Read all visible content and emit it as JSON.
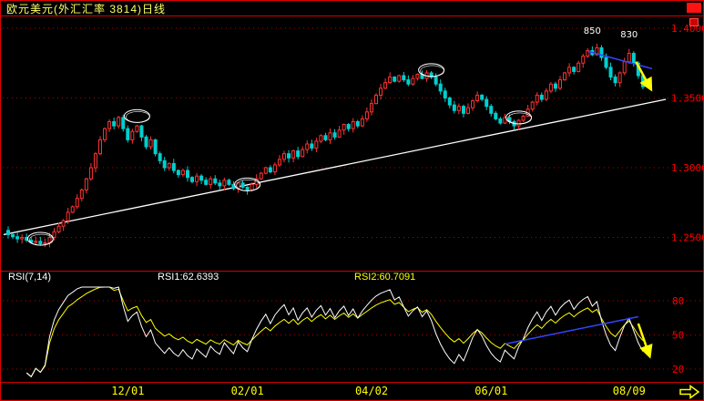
{
  "window": {
    "title": "欧元美元(外汇汇率 3814)日线"
  },
  "rsi_header": {
    "name": "RSI(7,14)",
    "rsi1": "RSI1:62.6393",
    "rsi2": "RSI2:60.7091"
  },
  "colors": {
    "background": "#000000",
    "frame": "#d00000",
    "grid": "#b00000",
    "axis_text": "#ff0000",
    "date_text": "#ffff00",
    "up_candle": "#ff3232",
    "down_candle": "#00cfcf",
    "trend_support": "#ffffff",
    "trend_resistance": "#3344ff",
    "arrow": "#ffff00",
    "rsi1_line": "#ffffff",
    "rsi2_line": "#ffff00",
    "annotation_text": "#ffffff"
  },
  "icons": {
    "corner_box": "red-square-icon",
    "marker_box": "small-red-square-icon",
    "next_arrow": "yellow-right-arrow-icon"
  },
  "chart_data": [
    {
      "type": "candlestick",
      "symbol": "欧元美元",
      "market_code": "外汇汇率 3814",
      "timeframe": "日线",
      "ylim": [
        1.227,
        1.408
      ],
      "y_ticks": [
        {
          "price": 1.4,
          "label": "1.4000"
        },
        {
          "price": 1.35,
          "label": "1.3500"
        },
        {
          "price": 1.3,
          "label": "1.3000"
        },
        {
          "price": 1.25,
          "label": "1.2500"
        }
      ],
      "x_ticks": [
        {
          "index": 26,
          "label": "12/01"
        },
        {
          "index": 52,
          "label": "02/01"
        },
        {
          "index": 79,
          "label": "04/02"
        },
        {
          "index": 105,
          "label": "06/01"
        },
        {
          "index": 135,
          "label": "08/09"
        }
      ],
      "closes": [
        1.252,
        1.2505,
        1.249,
        1.25,
        1.248,
        1.2465,
        1.2472,
        1.2455,
        1.2462,
        1.25,
        1.254,
        1.258,
        1.262,
        1.268,
        1.272,
        1.278,
        1.284,
        1.292,
        1.3,
        1.31,
        1.32,
        1.328,
        1.333,
        1.33,
        1.336,
        1.328,
        1.32,
        1.326,
        1.33,
        1.322,
        1.315,
        1.32,
        1.31,
        1.305,
        1.3,
        1.303,
        1.298,
        1.295,
        1.298,
        1.293,
        1.29,
        1.294,
        1.291,
        1.288,
        1.292,
        1.289,
        1.287,
        1.291,
        1.288,
        1.285,
        1.289,
        1.286,
        1.284,
        1.288,
        1.292,
        1.296,
        1.3,
        1.297,
        1.302,
        1.306,
        1.31,
        1.307,
        1.312,
        1.308,
        1.313,
        1.317,
        1.314,
        1.319,
        1.323,
        1.32,
        1.325,
        1.322,
        1.327,
        1.331,
        1.328,
        1.333,
        1.33,
        1.335,
        1.34,
        1.346,
        1.352,
        1.357,
        1.361,
        1.365,
        1.362,
        1.366,
        1.363,
        1.36,
        1.364,
        1.367,
        1.364,
        1.368,
        1.365,
        1.36,
        1.355,
        1.35,
        1.345,
        1.341,
        1.344,
        1.339,
        1.343,
        1.348,
        1.352,
        1.349,
        1.344,
        1.339,
        1.335,
        1.332,
        1.336,
        1.333,
        1.33,
        1.334,
        1.337,
        1.342,
        1.347,
        1.352,
        1.349,
        1.355,
        1.36,
        1.357,
        1.363,
        1.368,
        1.372,
        1.369,
        1.375,
        1.38,
        1.384,
        1.381,
        1.386,
        1.379,
        1.372,
        1.365,
        1.361,
        1.368,
        1.376,
        1.382,
        1.375,
        1.366,
        1.358
      ],
      "annotations": {
        "labels": [
          {
            "text": "850",
            "index": 127,
            "price": 1.396
          },
          {
            "text": "830",
            "index": 135,
            "price": 1.3935
          }
        ],
        "circles": [
          {
            "index": 7,
            "price": 1.249
          },
          {
            "index": 28,
            "price": 1.337
          },
          {
            "index": 52,
            "price": 1.288
          },
          {
            "index": 92,
            "price": 1.37
          },
          {
            "index": 111,
            "price": 1.336
          }
        ],
        "trendlines": [
          {
            "name": "support",
            "color": "#ffffff",
            "from": {
              "index": -1,
              "price": 1.252
            },
            "to": {
              "index": 143,
              "price": 1.349
            }
          },
          {
            "name": "resistance",
            "color": "#3344ff",
            "from": {
              "index": 126,
              "price": 1.3835
            },
            "to": {
              "index": 140,
              "price": 1.371
            }
          }
        ],
        "arrows": [
          {
            "color": "#ffff00",
            "from": {
              "index": 136.5,
              "price": 1.376
            },
            "to": {
              "index": 139.8,
              "price": 1.356
            }
          }
        ]
      }
    },
    {
      "type": "line",
      "indicator": "RSI",
      "periods": [
        7,
        14
      ],
      "ylim": [
        0,
        100
      ],
      "y_ticks": [
        {
          "value": 80,
          "label": "80"
        },
        {
          "value": 50,
          "label": "50"
        },
        {
          "value": 20,
          "label": "20"
        }
      ],
      "series": [
        {
          "name": "RSI1",
          "period": 7,
          "color": "#ffffff",
          "current": 62.6393
        },
        {
          "name": "RSI2",
          "period": 14,
          "color": "#ffff00",
          "current": 60.7091
        }
      ],
      "annotations": {
        "trendlines": [
          {
            "color": "#3344ff",
            "from": {
              "index": 108,
              "value": 42
            },
            "to": {
              "index": 137,
              "value": 66
            }
          }
        ],
        "arrows": [
          {
            "color": "#ffff00",
            "from": {
              "index": 137,
              "value": 60
            },
            "to": {
              "index": 139.5,
              "value": 31
            }
          }
        ]
      }
    }
  ]
}
